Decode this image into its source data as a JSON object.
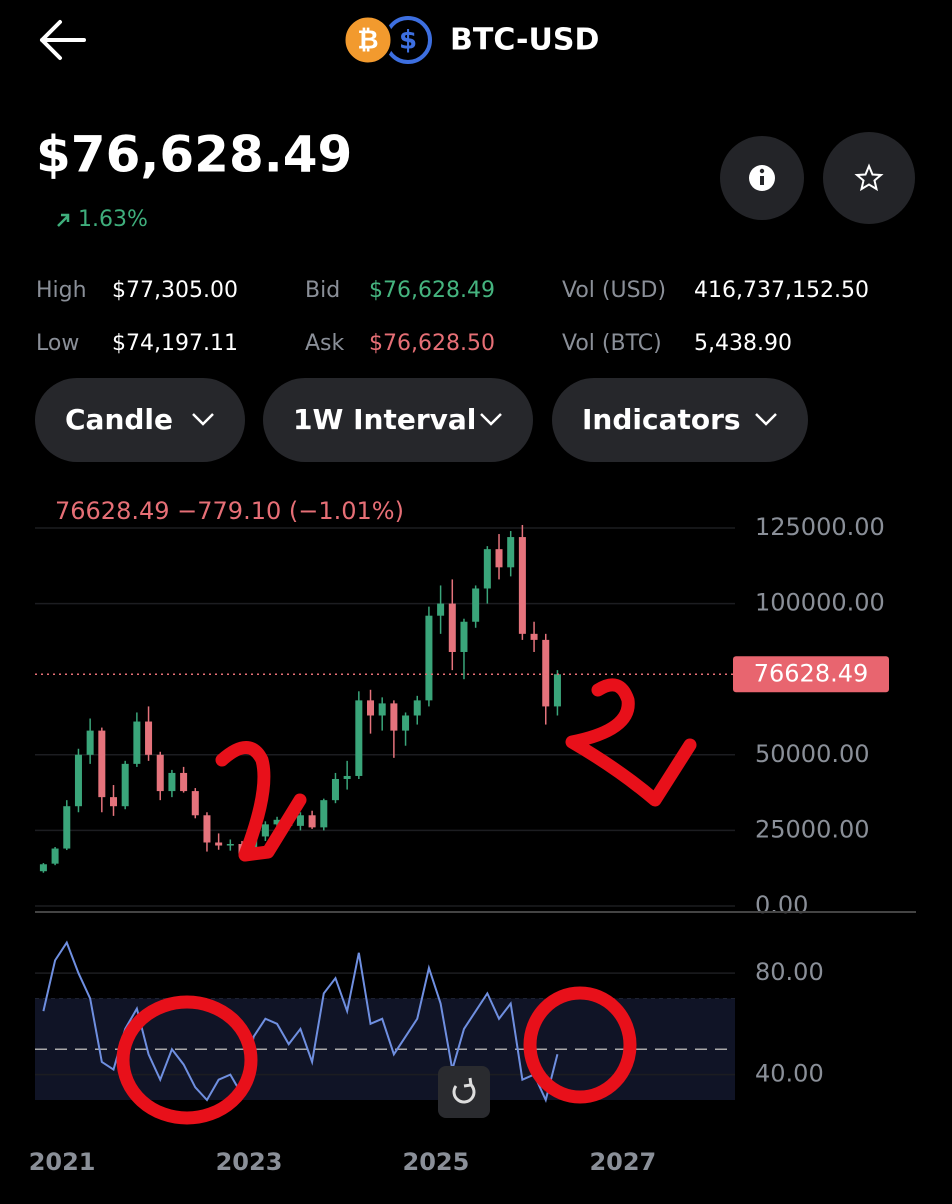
{
  "header": {
    "title": "BTC-USD"
  },
  "quote": {
    "price": "$76,628.49",
    "change": "1.63%"
  },
  "stats": [
    [
      {
        "label": "High",
        "value": "$77,305.00"
      },
      {
        "label": "Bid",
        "value": "$76,628.49"
      },
      {
        "label": "Vol (USD)",
        "value": "416,737,152.50"
      }
    ],
    [
      {
        "label": "Low",
        "value": "$74,197.11"
      },
      {
        "label": "Ask",
        "value": "$76,628.50"
      },
      {
        "label": "Vol (BTC)",
        "value": "5,438.90"
      }
    ]
  ],
  "controls": [
    "Candle",
    "1W Interval",
    "Indicators"
  ],
  "chart_data": [
    {
      "type": "candlestick",
      "legend_text": "76628.49  −779.10 (−1.01%)",
      "current_price": 76628.49,
      "xlim": [
        2020.71,
        2028.2
      ],
      "ylim": [
        0,
        125000
      ],
      "yticks": [
        {
          "value": 0,
          "label": "0.00"
        },
        {
          "value": 25000,
          "label": "25000.00"
        },
        {
          "value": 50000,
          "label": "50000.00"
        },
        {
          "value": 100000,
          "label": "100000.00"
        },
        {
          "value": 125000,
          "label": "125000.00"
        }
      ],
      "up_color": "#3aa57a",
      "down_color": "#e5737c",
      "grid": true,
      "x": [
        2020.8,
        2020.925,
        2021.05,
        2021.175,
        2021.3,
        2021.425,
        2021.55,
        2021.675,
        2021.8,
        2021.925,
        2022.05,
        2022.175,
        2022.3,
        2022.425,
        2022.55,
        2022.675,
        2022.8,
        2022.925,
        2023.05,
        2023.175,
        2023.3,
        2023.425,
        2023.55,
        2023.675,
        2023.8,
        2023.925,
        2024.05,
        2024.175,
        2024.3,
        2024.425,
        2024.55,
        2024.675,
        2024.8,
        2024.925,
        2025.05,
        2025.175,
        2025.3,
        2025.425,
        2025.55,
        2025.675,
        2025.8,
        2025.925,
        2026.05,
        2026.175,
        2026.3
      ],
      "open": [
        11500,
        14000,
        19000,
        33000,
        50000,
        58000,
        36000,
        33000,
        47000,
        61000,
        50000,
        38000,
        44000,
        38000,
        30000,
        21000,
        20000,
        20500,
        16800,
        23000,
        27000,
        28500,
        26500,
        30000,
        26000,
        35000,
        42000,
        43000,
        68000,
        63000,
        67000,
        58000,
        63000,
        68000,
        96000,
        100000,
        84000,
        94000,
        105000,
        118000,
        112000,
        122000,
        90000,
        88000,
        66000
      ],
      "high": [
        14200,
        19500,
        35000,
        52000,
        62000,
        59000,
        40000,
        48000,
        64000,
        66000,
        51000,
        45000,
        46000,
        39000,
        31000,
        24000,
        22000,
        21500,
        23500,
        28000,
        29500,
        30500,
        31000,
        31500,
        35500,
        44000,
        48000,
        71000,
        71500,
        69000,
        68000,
        64000,
        69500,
        99000,
        106000,
        108000,
        95000,
        106000,
        119000,
        123000,
        124000,
        126000,
        94000,
        90000,
        78000
      ],
      "low": [
        11000,
        13500,
        18500,
        31000,
        47000,
        31000,
        29800,
        32000,
        46000,
        48000,
        35000,
        36000,
        37500,
        29000,
        18000,
        18600,
        18300,
        15500,
        16500,
        21500,
        25000,
        25500,
        25000,
        25500,
        25000,
        34000,
        38500,
        42000,
        57000,
        58000,
        49000,
        53000,
        60000,
        66000,
        90000,
        78000,
        75000,
        92000,
        100000,
        108000,
        109000,
        88000,
        84000,
        60000,
        63000
      ],
      "close": [
        13800,
        19000,
        33000,
        50000,
        58000,
        36000,
        33000,
        47000,
        61000,
        50000,
        38000,
        44000,
        38000,
        30000,
        21000,
        20000,
        20500,
        16800,
        23000,
        27000,
        28500,
        26500,
        30000,
        26000,
        35000,
        42000,
        43000,
        68000,
        63000,
        67000,
        58000,
        63000,
        68000,
        96000,
        100000,
        84000,
        94000,
        105000,
        118000,
        112000,
        122000,
        90000,
        88000,
        66000,
        76628.49
      ]
    },
    {
      "type": "line",
      "xlim": [
        2020.71,
        2028.2
      ],
      "xticks": [
        2021,
        2023,
        2025,
        2027
      ],
      "ylim": [
        30,
        95
      ],
      "yticks": [
        {
          "value": 40,
          "label": "40.00"
        },
        {
          "value": 80,
          "label": "80.00"
        }
      ],
      "band": [
        30,
        70
      ],
      "midline": 50,
      "series": [
        {
          "color": "#6f8fe0",
          "x": [
            2020.8,
            2020.925,
            2021.05,
            2021.175,
            2021.3,
            2021.425,
            2021.55,
            2021.675,
            2021.8,
            2021.925,
            2022.05,
            2022.175,
            2022.3,
            2022.425,
            2022.55,
            2022.675,
            2022.8,
            2022.925,
            2023.05,
            2023.175,
            2023.3,
            2023.425,
            2023.55,
            2023.675,
            2023.8,
            2023.925,
            2024.05,
            2024.175,
            2024.3,
            2024.425,
            2024.55,
            2024.675,
            2024.8,
            2024.925,
            2025.05,
            2025.175,
            2025.3,
            2025.425,
            2025.55,
            2025.675,
            2025.8,
            2025.925,
            2026.05,
            2026.175,
            2026.3
          ],
          "values": [
            65,
            85,
            92,
            80,
            70,
            45,
            42,
            58,
            66,
            48,
            38,
            50,
            44,
            35,
            30,
            38,
            40,
            32,
            55,
            62,
            60,
            52,
            58,
            45,
            72,
            78,
            65,
            88,
            60,
            62,
            48,
            55,
            62,
            82,
            68,
            42,
            58,
            65,
            72,
            62,
            68,
            38,
            40,
            30,
            48
          ]
        }
      ]
    }
  ]
}
